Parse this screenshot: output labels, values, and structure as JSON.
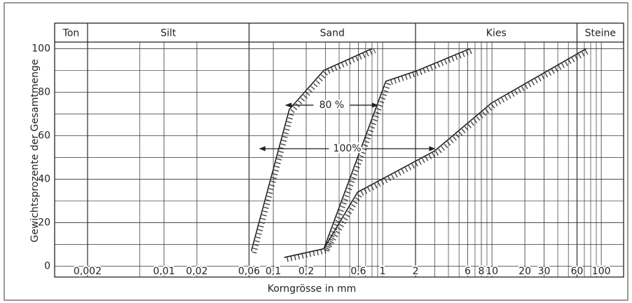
{
  "chart_data": {
    "type": "line",
    "xlabel": "Korngrösse in mm",
    "ylabel": "Gewichtsprozente der Gesamtmenge",
    "x_log": true,
    "xlim": [
      0.001,
      160
    ],
    "ylim": [
      -5,
      103
    ],
    "xticks": [
      {
        "value": 0.002,
        "label": "0,002"
      },
      {
        "value": 0.01,
        "label": "0,01"
      },
      {
        "value": 0.02,
        "label": "0,02"
      },
      {
        "value": 0.06,
        "label": "0,06"
      },
      {
        "value": 0.1,
        "label": "0,1"
      },
      {
        "value": 0.2,
        "label": "0,2"
      },
      {
        "value": 0.6,
        "label": "0,6"
      },
      1,
      2,
      6,
      8,
      10,
      20,
      30,
      60,
      100
    ],
    "xminor": [
      0.006,
      0.3,
      0.4,
      0.5,
      0.7,
      0.8,
      0.9,
      3,
      4,
      5,
      7,
      9,
      40,
      50,
      70,
      80,
      90
    ],
    "yticks": [
      0,
      20,
      40,
      60,
      80,
      100
    ],
    "yminor": [
      10,
      30,
      50,
      70,
      90
    ],
    "grid": true,
    "classes": [
      {
        "label": "Ton",
        "from": 0.001,
        "to": 0.002
      },
      {
        "label": "Silt",
        "from": 0.002,
        "to": 0.06
      },
      {
        "label": "Sand",
        "from": 0.06,
        "to": 2
      },
      {
        "label": "Kies",
        "from": 2,
        "to": 60
      },
      {
        "label": "Steine",
        "from": 60,
        "to": 160
      }
    ],
    "series": [
      {
        "color": "#222222",
        "x": [
          0.063,
          0.14,
          0.29,
          0.8
        ],
        "values": [
          7,
          72,
          90,
          100
        ]
      },
      {
        "color": "#222222",
        "x": [
          0.29,
          1.07,
          2.1,
          6.3
        ],
        "values": [
          8,
          85,
          90,
          100
        ]
      },
      {
        "color": "#222222",
        "x": [
          0.126,
          0.29,
          0.59,
          3.0,
          9.9,
          73
        ],
        "values": [
          4,
          8,
          34,
          53,
          75,
          100
        ]
      }
    ],
    "annotations": [
      {
        "text": "80 %",
        "from": 0.13,
        "to": 0.9,
        "y": 74
      },
      {
        "text": "100%",
        "from": 0.075,
        "to": 3.0,
        "y": 54
      }
    ]
  }
}
